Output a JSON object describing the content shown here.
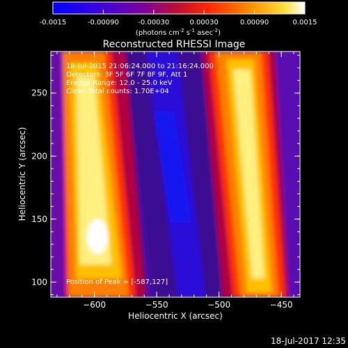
{
  "colorbar": {
    "ticks": [
      "-0.0015",
      "-0.00090",
      "-0.00030",
      "0.00030",
      "0.00090",
      "0.0015"
    ],
    "label_main": "(photons cm",
    "label_sup1": "-2",
    "label_mid1": " s",
    "label_sup2": "-1",
    "label_mid2": " asec",
    "label_sup3": "-2",
    "label_end": ")"
  },
  "chart_data": {
    "type": "heatmap",
    "title": "Reconstructed RHESSI Image",
    "xlabel": "Heliocentric X (arcsec)",
    "ylabel": "Heliocentric Y (arcsec)",
    "xlim": [
      -635,
      -435
    ],
    "ylim": [
      88,
      283
    ],
    "xticks": [
      -600,
      -550,
      -500,
      -450
    ],
    "xtick_labels": [
      "−600",
      "−550",
      "−500",
      "−450"
    ],
    "yticks": [
      100,
      150,
      200,
      250
    ],
    "ytick_labels": [
      "100",
      "150",
      "200",
      "250"
    ],
    "colorbar_range": [
      -0.0015,
      0.0015
    ],
    "colormap": [
      "#0000ff",
      "#5a00d0",
      "#b00030",
      "#ff3000",
      "#ffa000",
      "#ffffff"
    ],
    "annotations": [
      "18-Jul-2015 21:06:24.000 to 21:16:24.000",
      "Detectors: 3F 5F 6F 7F 8F 9F, Att 1",
      "Energy Range: 12.0 - 25.0 keV",
      "Clean      Total counts: 1.70E+04"
    ],
    "peak_label": "Position of Peak = [-587,127]",
    "peak": [
      -587,
      127
    ]
  },
  "footer": {
    "timestamp": "18-Jul-2017 12:35"
  }
}
